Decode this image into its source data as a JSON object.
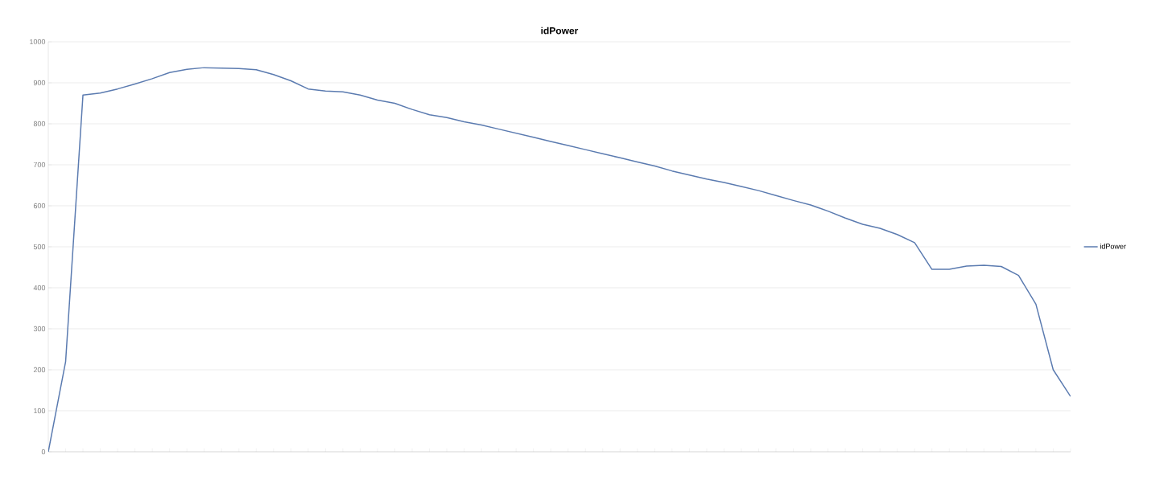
{
  "chart_data": {
    "type": "line",
    "title": "idPower",
    "categories": [
      null,
      null,
      null,
      null,
      null,
      null,
      null,
      null,
      null,
      null,
      null,
      null,
      null,
      null,
      null,
      null,
      null,
      null,
      null,
      null,
      null,
      null,
      null,
      null,
      null,
      null,
      null,
      null,
      null,
      null,
      null,
      null,
      null,
      null,
      null,
      null,
      null,
      null,
      null,
      null,
      null,
      null,
      null,
      null,
      null,
      null,
      null,
      null,
      null,
      null,
      null,
      null,
      null,
      null,
      null,
      null,
      null,
      null,
      null,
      null
    ],
    "series": [
      {
        "name": "idPower",
        "color": "#5b7bb0",
        "values": [
          0,
          220,
          870,
          875,
          885,
          897,
          910,
          925,
          933,
          937,
          936,
          935,
          932,
          920,
          905,
          885,
          880,
          878,
          870,
          858,
          850,
          835,
          822,
          815,
          805,
          797,
          787,
          777,
          767,
          757,
          747,
          737,
          727,
          717,
          707,
          697,
          685,
          675,
          665,
          657,
          647,
          637,
          625,
          613,
          602,
          587,
          570,
          555,
          545,
          530,
          510,
          445,
          445,
          453,
          455,
          452,
          430,
          360,
          200,
          135
        ]
      }
    ],
    "ylim": [
      0,
      1000
    ],
    "yticks": [
      0,
      100,
      200,
      300,
      400,
      500,
      600,
      700,
      800,
      900,
      1000
    ],
    "grid": "y",
    "legend": "right",
    "marker": "none",
    "line_style": "solid"
  }
}
